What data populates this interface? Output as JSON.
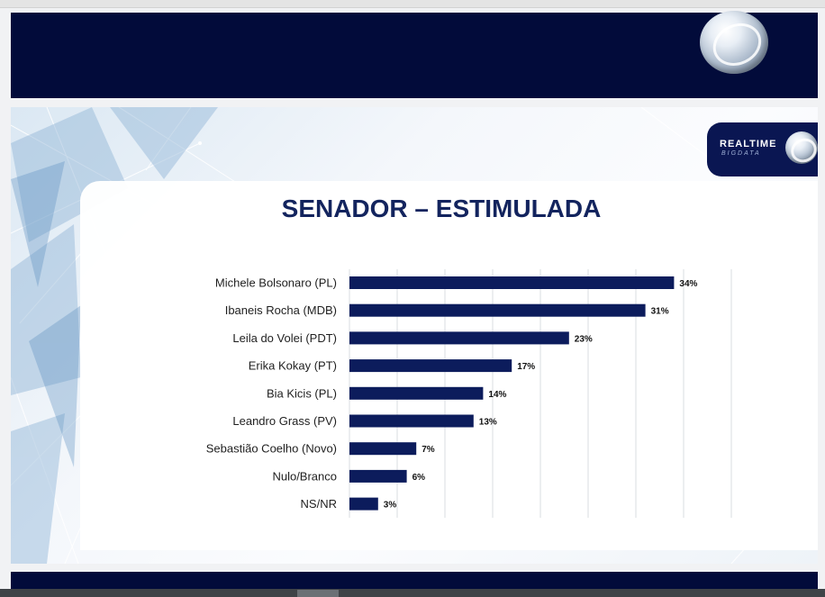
{
  "brand": {
    "badge_title": "REALTIME",
    "badge_subtitle": "BIGDATA"
  },
  "colors": {
    "banner": "#020b3a",
    "bar": "#0c1c5c",
    "title": "#13245e",
    "label": "#1f1f1f",
    "grid": "#d9dce2"
  },
  "chart_data": {
    "type": "bar",
    "orientation": "horizontal",
    "title": "SENADOR – ESTIMULADA",
    "categories": [
      "Michele Bolsonaro (PL)",
      "Ibaneis Rocha (MDB)",
      "Leila do Volei (PDT)",
      "Erika Kokay (PT)",
      "Bia Kicis (PL)",
      "Leandro Grass (PV)",
      "Sebastião Coelho (Novo)",
      "Nulo/Branco",
      "NS/NR"
    ],
    "values": [
      34,
      31,
      23,
      17,
      14,
      13,
      7,
      6,
      3
    ],
    "data_labels": [
      "34%",
      "31%",
      "23%",
      "17%",
      "14%",
      "13%",
      "7%",
      "6%",
      "3%"
    ],
    "xlim": [
      0,
      40
    ],
    "grid": true,
    "legend": "none"
  }
}
